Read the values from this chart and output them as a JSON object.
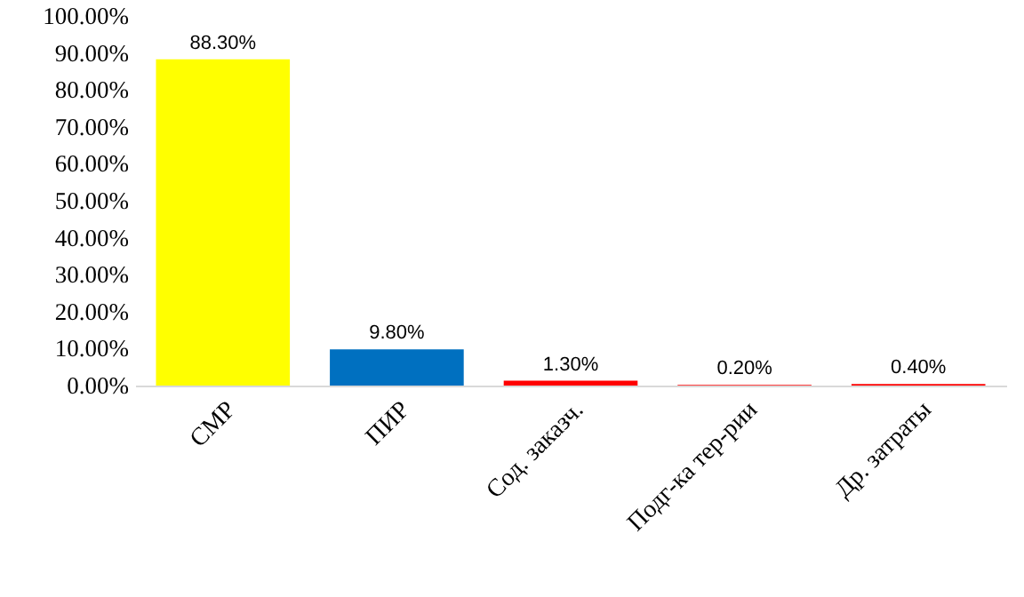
{
  "chart_data": {
    "type": "bar",
    "categories": [
      "СМР",
      "ПИР",
      "Сод. заказч.",
      "Подг-ка тер-рии",
      "Др. затраты"
    ],
    "values": [
      88.3,
      9.8,
      1.3,
      0.2,
      0.4
    ],
    "colors": [
      "#ffff00",
      "#0070c0",
      "#ff0000",
      "#ff0000",
      "#ff0000"
    ],
    "value_labels": [
      "88.30%",
      "9.80%",
      "1.30%",
      "0.20%",
      "0.40%"
    ],
    "ylim": [
      0,
      100
    ],
    "yticks": [
      {
        "value": 0,
        "label": "0.00%"
      },
      {
        "value": 10,
        "label": "10.00%"
      },
      {
        "value": 20,
        "label": "20.00%"
      },
      {
        "value": 30,
        "label": "30.00%"
      },
      {
        "value": 40,
        "label": "40.00%"
      },
      {
        "value": 50,
        "label": "50.00%"
      },
      {
        "value": 60,
        "label": "60.00%"
      },
      {
        "value": 70,
        "label": "70.00%"
      },
      {
        "value": 80,
        "label": "80.00%"
      },
      {
        "value": 90,
        "label": "90.00%"
      },
      {
        "value": 100,
        "label": "100.00%"
      }
    ],
    "grid": false
  }
}
